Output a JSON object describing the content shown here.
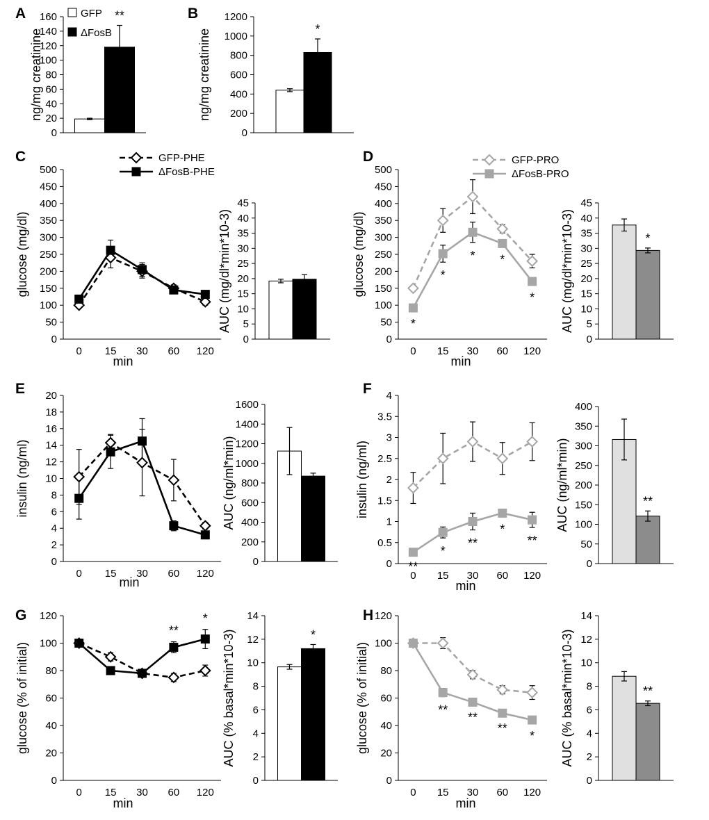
{
  "chart_data": [
    {
      "id": "A",
      "panel_label": "A",
      "type": "bar",
      "ylabel": "ng/mg creatinine",
      "ylim": [
        0,
        160
      ],
      "yticks": [
        0,
        20,
        40,
        60,
        80,
        100,
        120,
        140,
        160
      ],
      "legend": [
        {
          "label": "GFP",
          "fill": "#ffffff"
        },
        {
          "label": "ΔFosB",
          "fill": "#000000"
        }
      ],
      "bars": [
        {
          "name": "GFP",
          "value": 19,
          "err": 1,
          "fill": "#ffffff",
          "sig": ""
        },
        {
          "name": "ΔFosB",
          "value": 118,
          "err": 30,
          "fill": "#000000",
          "sig": "**"
        }
      ]
    },
    {
      "id": "B",
      "panel_label": "B",
      "type": "bar",
      "ylabel": "ng/mg creatinine",
      "ylim": [
        0,
        1200
      ],
      "yticks": [
        0,
        200,
        400,
        600,
        800,
        1000,
        1200
      ],
      "bars": [
        {
          "name": "GFP",
          "value": 440,
          "err": 15,
          "fill": "#ffffff",
          "sig": ""
        },
        {
          "name": "ΔFosB",
          "value": 830,
          "err": 140,
          "fill": "#000000",
          "sig": "*"
        }
      ]
    },
    {
      "id": "C",
      "panel_label": "C",
      "type": "line",
      "ylabel": "glucose (mg/dl)",
      "xlabel": "min",
      "categories": [
        "0",
        "15",
        "30",
        "60",
        "120"
      ],
      "ylim": [
        0,
        500
      ],
      "yticks": [
        0,
        50,
        100,
        150,
        200,
        250,
        300,
        350,
        400,
        450,
        500
      ],
      "series": [
        {
          "name": "GFP-PHE",
          "color": "#000000",
          "dash": true,
          "marker": "diamond-open",
          "values": [
            100,
            240,
            200,
            150,
            110
          ],
          "err": [
            8,
            30,
            20,
            10,
            10
          ],
          "sig": [
            "",
            "",
            "",
            "",
            ""
          ]
        },
        {
          "name": "ΔFosB-PHE",
          "color": "#000000",
          "dash": false,
          "marker": "square",
          "values": [
            118,
            262,
            205,
            145,
            132
          ],
          "err": [
            10,
            30,
            20,
            10,
            10
          ],
          "sig": [
            "",
            "",
            "",
            "",
            ""
          ]
        }
      ]
    },
    {
      "id": "C2",
      "type": "bar",
      "ylabel": "AUC (mg/dl*min*10-3)",
      "ylim": [
        0,
        45
      ],
      "yticks": [
        0,
        5,
        10,
        15,
        20,
        25,
        30,
        35,
        40,
        45
      ],
      "bars": [
        {
          "name": "GFP-PHE",
          "value": 19.2,
          "err": 0.6,
          "fill": "#ffffff",
          "sig": ""
        },
        {
          "name": "ΔFosB-PHE",
          "value": 19.8,
          "err": 1.5,
          "fill": "#000000",
          "sig": ""
        }
      ]
    },
    {
      "id": "D",
      "panel_label": "D",
      "type": "line",
      "ylabel": "glucose (mg/dl)",
      "xlabel": "min",
      "categories": [
        "0",
        "15",
        "30",
        "60",
        "120"
      ],
      "ylim": [
        0,
        500
      ],
      "yticks": [
        0,
        50,
        100,
        150,
        200,
        250,
        300,
        350,
        400,
        450,
        500
      ],
      "series": [
        {
          "name": "GFP-PRO",
          "color": "#a6a6a6",
          "dash": true,
          "marker": "diamond-open",
          "values": [
            150,
            350,
            420,
            325,
            230
          ],
          "err": [
            8,
            35,
            50,
            12,
            20
          ],
          "sig": [
            "",
            "",
            "",
            "",
            ""
          ]
        },
        {
          "name": "ΔFosB-PRO",
          "color": "#a6a6a6",
          "dash": false,
          "marker": "square",
          "values": [
            92,
            252,
            315,
            282,
            170
          ],
          "err": [
            8,
            25,
            30,
            8,
            8
          ],
          "sig": [
            "*",
            "*",
            "*",
            "*",
            "*"
          ]
        }
      ]
    },
    {
      "id": "D2",
      "type": "bar",
      "ylabel": "AUC (mg/dl*min*10-3)",
      "ylim": [
        0,
        45
      ],
      "yticks": [
        0,
        5,
        10,
        15,
        20,
        25,
        30,
        35,
        40,
        45
      ],
      "bars": [
        {
          "name": "GFP-PRO",
          "value": 37.7,
          "err": 2,
          "fill": "#e0e0e0",
          "sig": ""
        },
        {
          "name": "ΔFosB-PRO",
          "value": 29.3,
          "err": 0.8,
          "fill": "#8c8c8c",
          "sig": "*"
        }
      ]
    },
    {
      "id": "E",
      "panel_label": "E",
      "type": "line",
      "ylabel": "insulin (ng/ml)",
      "xlabel": "min",
      "categories": [
        "0",
        "15",
        "30",
        "60",
        "120"
      ],
      "ylim": [
        0,
        20
      ],
      "yticks": [
        0,
        2,
        4,
        6,
        8,
        10,
        12,
        14,
        16,
        18,
        20
      ],
      "series": [
        {
          "name": "GFP-PHE",
          "color": "#000000",
          "dash": true,
          "marker": "diamond-open",
          "values": [
            10.2,
            14.3,
            11.9,
            9.8,
            4.3
          ],
          "err": [
            3.3,
            1,
            4,
            2.5,
            0.4
          ],
          "sig": [
            "",
            "",
            "",
            "",
            ""
          ]
        },
        {
          "name": "ΔFosB-PHE",
          "color": "#000000",
          "dash": false,
          "marker": "square",
          "values": [
            7.6,
            13.2,
            14.5,
            4.3,
            3.2
          ],
          "err": [
            2.5,
            2,
            2.7,
            0.6,
            0.3
          ],
          "sig": [
            "",
            "",
            "",
            "",
            ""
          ]
        }
      ]
    },
    {
      "id": "E2",
      "type": "bar",
      "ylabel": "AUC (ng/ml*min)",
      "ylim": [
        0,
        1600
      ],
      "yticks": [
        0,
        200,
        400,
        600,
        800,
        1000,
        1200,
        1400,
        1600
      ],
      "bars": [
        {
          "name": "GFP-PHE",
          "value": 1125,
          "err": 240,
          "fill": "#ffffff",
          "sig": ""
        },
        {
          "name": "ΔFosB-PHE",
          "value": 870,
          "err": 30,
          "fill": "#000000",
          "sig": ""
        }
      ]
    },
    {
      "id": "F",
      "panel_label": "F",
      "type": "line",
      "ylabel": "insulin (ng/ml)",
      "xlabel": "min",
      "categories": [
        "0",
        "15",
        "30",
        "60",
        "120"
      ],
      "ylim": [
        0,
        4
      ],
      "yticks": [
        0,
        0.5,
        1,
        1.5,
        2,
        2.5,
        3,
        3.5,
        4
      ],
      "ytick_labels": [
        "0",
        "0.5",
        "1",
        "1.5",
        "2",
        "2.5",
        "3",
        "3.5",
        "4"
      ],
      "series": [
        {
          "name": "GFP-PRO",
          "color": "#a6a6a6",
          "dash": true,
          "marker": "diamond-open",
          "values": [
            1.8,
            2.5,
            2.9,
            2.5,
            2.9
          ],
          "err": [
            0.37,
            0.6,
            0.47,
            0.38,
            0.45
          ],
          "sig": [
            "",
            "",
            "",
            "",
            ""
          ]
        },
        {
          "name": "ΔFosB-PRO",
          "color": "#a6a6a6",
          "dash": false,
          "marker": "square",
          "values": [
            0.27,
            0.74,
            1.0,
            1.2,
            1.04
          ],
          "err": [
            0.03,
            0.13,
            0.2,
            0.07,
            0.18
          ],
          "sig": [
            "**",
            "*",
            "**",
            "*",
            "**"
          ]
        }
      ]
    },
    {
      "id": "F2",
      "type": "bar",
      "ylabel": "AUC (ng/ml*min)",
      "ylim": [
        0,
        400
      ],
      "yticks": [
        0,
        50,
        100,
        150,
        200,
        250,
        300,
        350,
        400
      ],
      "bars": [
        {
          "name": "GFP-PRO",
          "value": 316,
          "err": 52,
          "fill": "#e0e0e0",
          "sig": ""
        },
        {
          "name": "ΔFosB-PRO",
          "value": 121,
          "err": 13,
          "fill": "#8c8c8c",
          "sig": "**"
        }
      ]
    },
    {
      "id": "G",
      "panel_label": "G",
      "type": "line",
      "ylabel": "glucose (% of initial)",
      "xlabel": "min",
      "categories": [
        "0",
        "15",
        "30",
        "60",
        "120"
      ],
      "ylim": [
        0,
        120
      ],
      "yticks": [
        0,
        20,
        40,
        60,
        80,
        100,
        120
      ],
      "series": [
        {
          "name": "GFP-PHE",
          "color": "#000000",
          "dash": true,
          "marker": "diamond-open",
          "values": [
            100,
            90,
            78,
            75,
            80
          ],
          "err": [
            0,
            3,
            2,
            3,
            4
          ],
          "sig": [
            "",
            "",
            "",
            "",
            ""
          ]
        },
        {
          "name": "ΔFosB-PHE",
          "color": "#000000",
          "dash": false,
          "marker": "square",
          "values": [
            100,
            80,
            78,
            97,
            103
          ],
          "err": [
            0,
            1,
            1,
            4,
            7
          ],
          "sig": [
            "",
            "",
            "",
            "**",
            "*"
          ]
        }
      ]
    },
    {
      "id": "G2",
      "type": "bar",
      "ylabel": "AUC (% basal*min*10-3)",
      "ylim": [
        0,
        14
      ],
      "yticks": [
        0,
        2,
        4,
        6,
        8,
        10,
        12,
        14
      ],
      "bars": [
        {
          "name": "GFP-PHE",
          "value": 9.65,
          "err": 0.2,
          "fill": "#ffffff",
          "sig": ""
        },
        {
          "name": "ΔFosB-PHE",
          "value": 11.2,
          "err": 0.35,
          "fill": "#000000",
          "sig": "*"
        }
      ]
    },
    {
      "id": "H",
      "panel_label": "H",
      "type": "line",
      "ylabel": "glucose (% of initial)",
      "xlabel": "min",
      "categories": [
        "0",
        "15",
        "30",
        "60",
        "120"
      ],
      "ylim": [
        0,
        120
      ],
      "yticks": [
        0,
        20,
        40,
        60,
        80,
        100,
        120
      ],
      "series": [
        {
          "name": "GFP-PRO",
          "color": "#a6a6a6",
          "dash": true,
          "marker": "diamond-open",
          "values": [
            100,
            100,
            77,
            66,
            64
          ],
          "err": [
            0,
            4,
            3,
            3,
            5
          ],
          "sig": [
            "",
            "",
            "",
            "",
            ""
          ]
        },
        {
          "name": "ΔFosB-PRO",
          "color": "#a6a6a6",
          "dash": false,
          "marker": "square",
          "values": [
            100,
            64,
            57,
            49,
            44
          ],
          "err": [
            0,
            3,
            1.5,
            1.5,
            2
          ],
          "sig": [
            "",
            "**",
            "**",
            "**",
            "*"
          ]
        }
      ]
    },
    {
      "id": "H2",
      "type": "bar",
      "ylabel": "AUC (% basal*min*10-3)",
      "ylim": [
        0,
        14
      ],
      "yticks": [
        0,
        2,
        4,
        6,
        8,
        10,
        12,
        14
      ],
      "bars": [
        {
          "name": "GFP-PRO",
          "value": 8.85,
          "err": 0.4,
          "fill": "#e0e0e0",
          "sig": ""
        },
        {
          "name": "ΔFosB-PRO",
          "value": 6.55,
          "err": 0.2,
          "fill": "#8c8c8c",
          "sig": "**"
        }
      ]
    }
  ],
  "legends": {
    "phe": [
      {
        "label": "GFP-PHE",
        "color": "#000000",
        "dash": true,
        "marker": "diamond-open"
      },
      {
        "label": "ΔFosB-PHE",
        "color": "#000000",
        "dash": false,
        "marker": "square"
      }
    ],
    "pro": [
      {
        "label": "GFP-PRO",
        "color": "#a6a6a6",
        "dash": true,
        "marker": "diamond-open"
      },
      {
        "label": "ΔFosB-PRO",
        "color": "#a6a6a6",
        "dash": false,
        "marker": "square"
      }
    ]
  }
}
